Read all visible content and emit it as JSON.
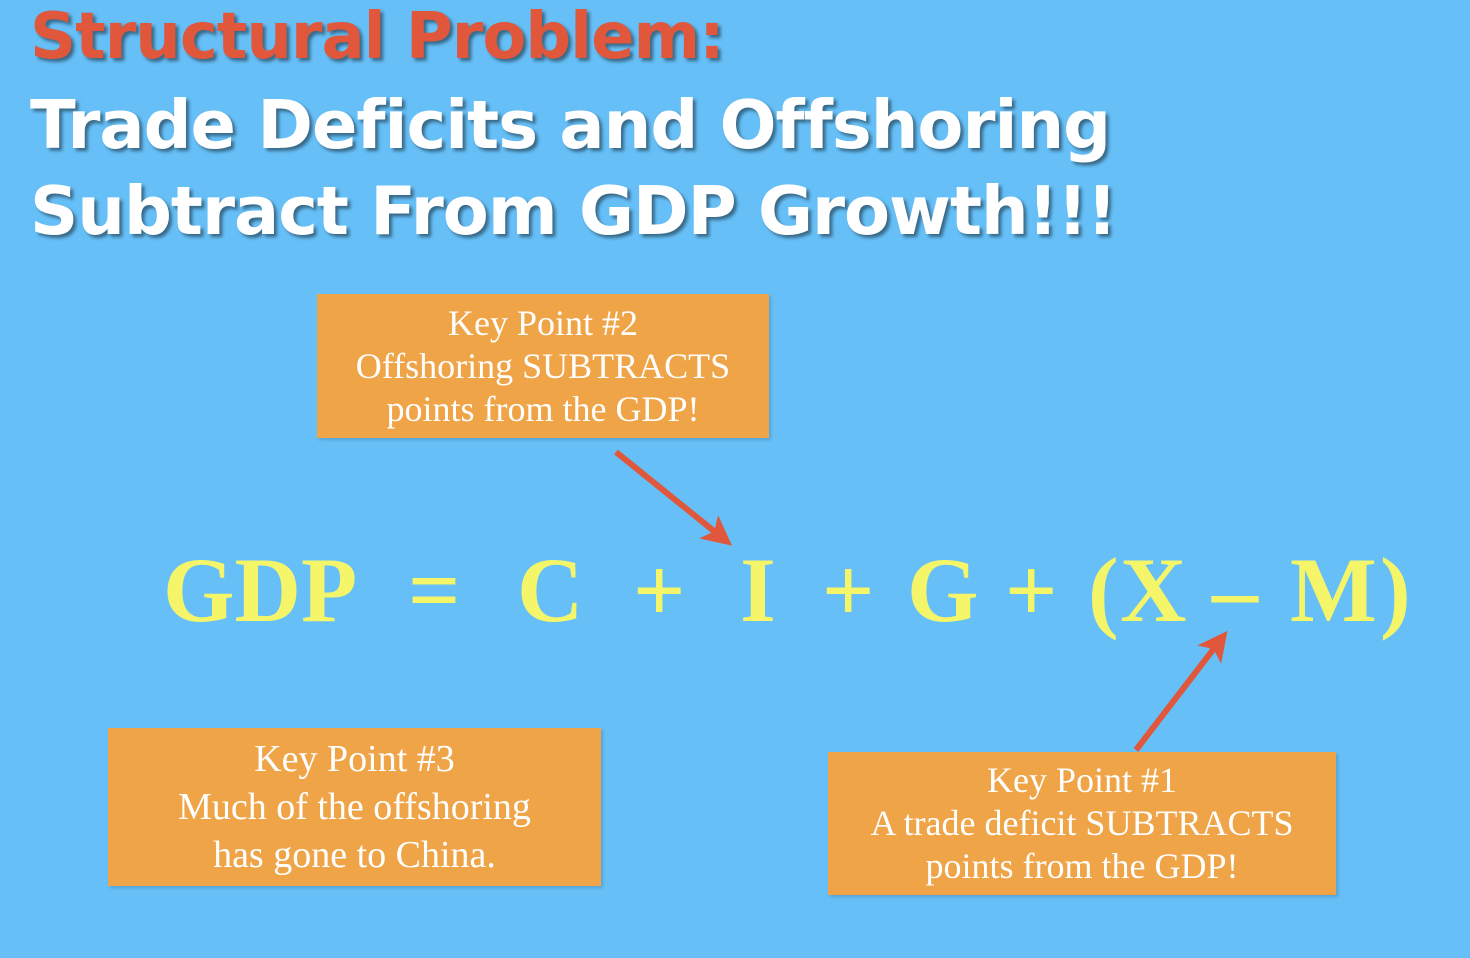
{
  "title": {
    "line1": "Structural Problem:",
    "line2": "Trade Deficits and Offshoring",
    "line3": "Subtract From GDP Growth!!!"
  },
  "equation": {
    "gdp": "GDP",
    "equals": "=",
    "c": "C",
    "plus1": "+",
    "i": "I",
    "plus2": "+",
    "g": "G",
    "plus3": "+",
    "open_paren": "(",
    "x": "X",
    "minus": "–",
    "m": "M",
    "close_paren": ")"
  },
  "key_points": {
    "kp2": {
      "heading": "Key Point #2",
      "line1": "Offshoring SUBTRACTS",
      "line2": "points from the GDP!"
    },
    "kp3": {
      "heading": "Key Point #3",
      "line1": "Much of the offshoring",
      "line2": "has gone to China."
    },
    "kp1": {
      "heading": "Key Point #1",
      "line1": "A trade deficit SUBTRACTS",
      "line2": "points from the GDP!"
    }
  },
  "colors": {
    "background": "#66bff7",
    "title_red": "#e0573b",
    "title_white": "#ffffff",
    "box_fill": "#efa448",
    "equation_yellow": "#f5f56a",
    "arrow": "#e0573b"
  }
}
